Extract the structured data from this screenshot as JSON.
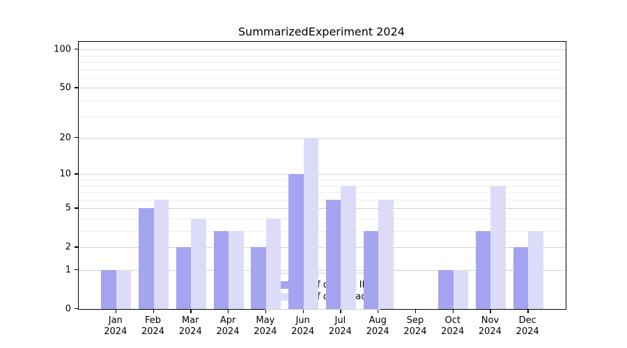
{
  "chart_data": {
    "type": "bar",
    "title": "SummarizedExperiment 2024",
    "categories": [
      "Jan 2024",
      "Feb 2024",
      "Mar 2024",
      "Apr 2024",
      "May 2024",
      "Jun 2024",
      "Jul 2024",
      "Aug 2024",
      "Sep 2024",
      "Oct 2024",
      "Nov 2024",
      "Dec 2024"
    ],
    "series": [
      {
        "name": "Nb of distinct IPs",
        "color": "#a4a4f0",
        "values": [
          1,
          5,
          2,
          3,
          2,
          10,
          6,
          3,
          0,
          1,
          3,
          2
        ]
      },
      {
        "name": "Nb of downloads",
        "color": "#dcdcf9",
        "values": [
          1,
          6,
          4,
          3,
          4,
          20,
          8,
          6,
          0,
          1,
          8,
          3
        ]
      }
    ],
    "yscale": "log1p",
    "ylim": [
      0,
      115
    ],
    "yticks": [
      0,
      1,
      2,
      5,
      10,
      20,
      50,
      100
    ],
    "minor_gridlines": [
      3,
      4,
      6,
      7,
      8,
      9,
      30,
      40,
      60,
      70,
      80,
      90
    ],
    "grid": true,
    "legend_position": "lower center inside"
  }
}
